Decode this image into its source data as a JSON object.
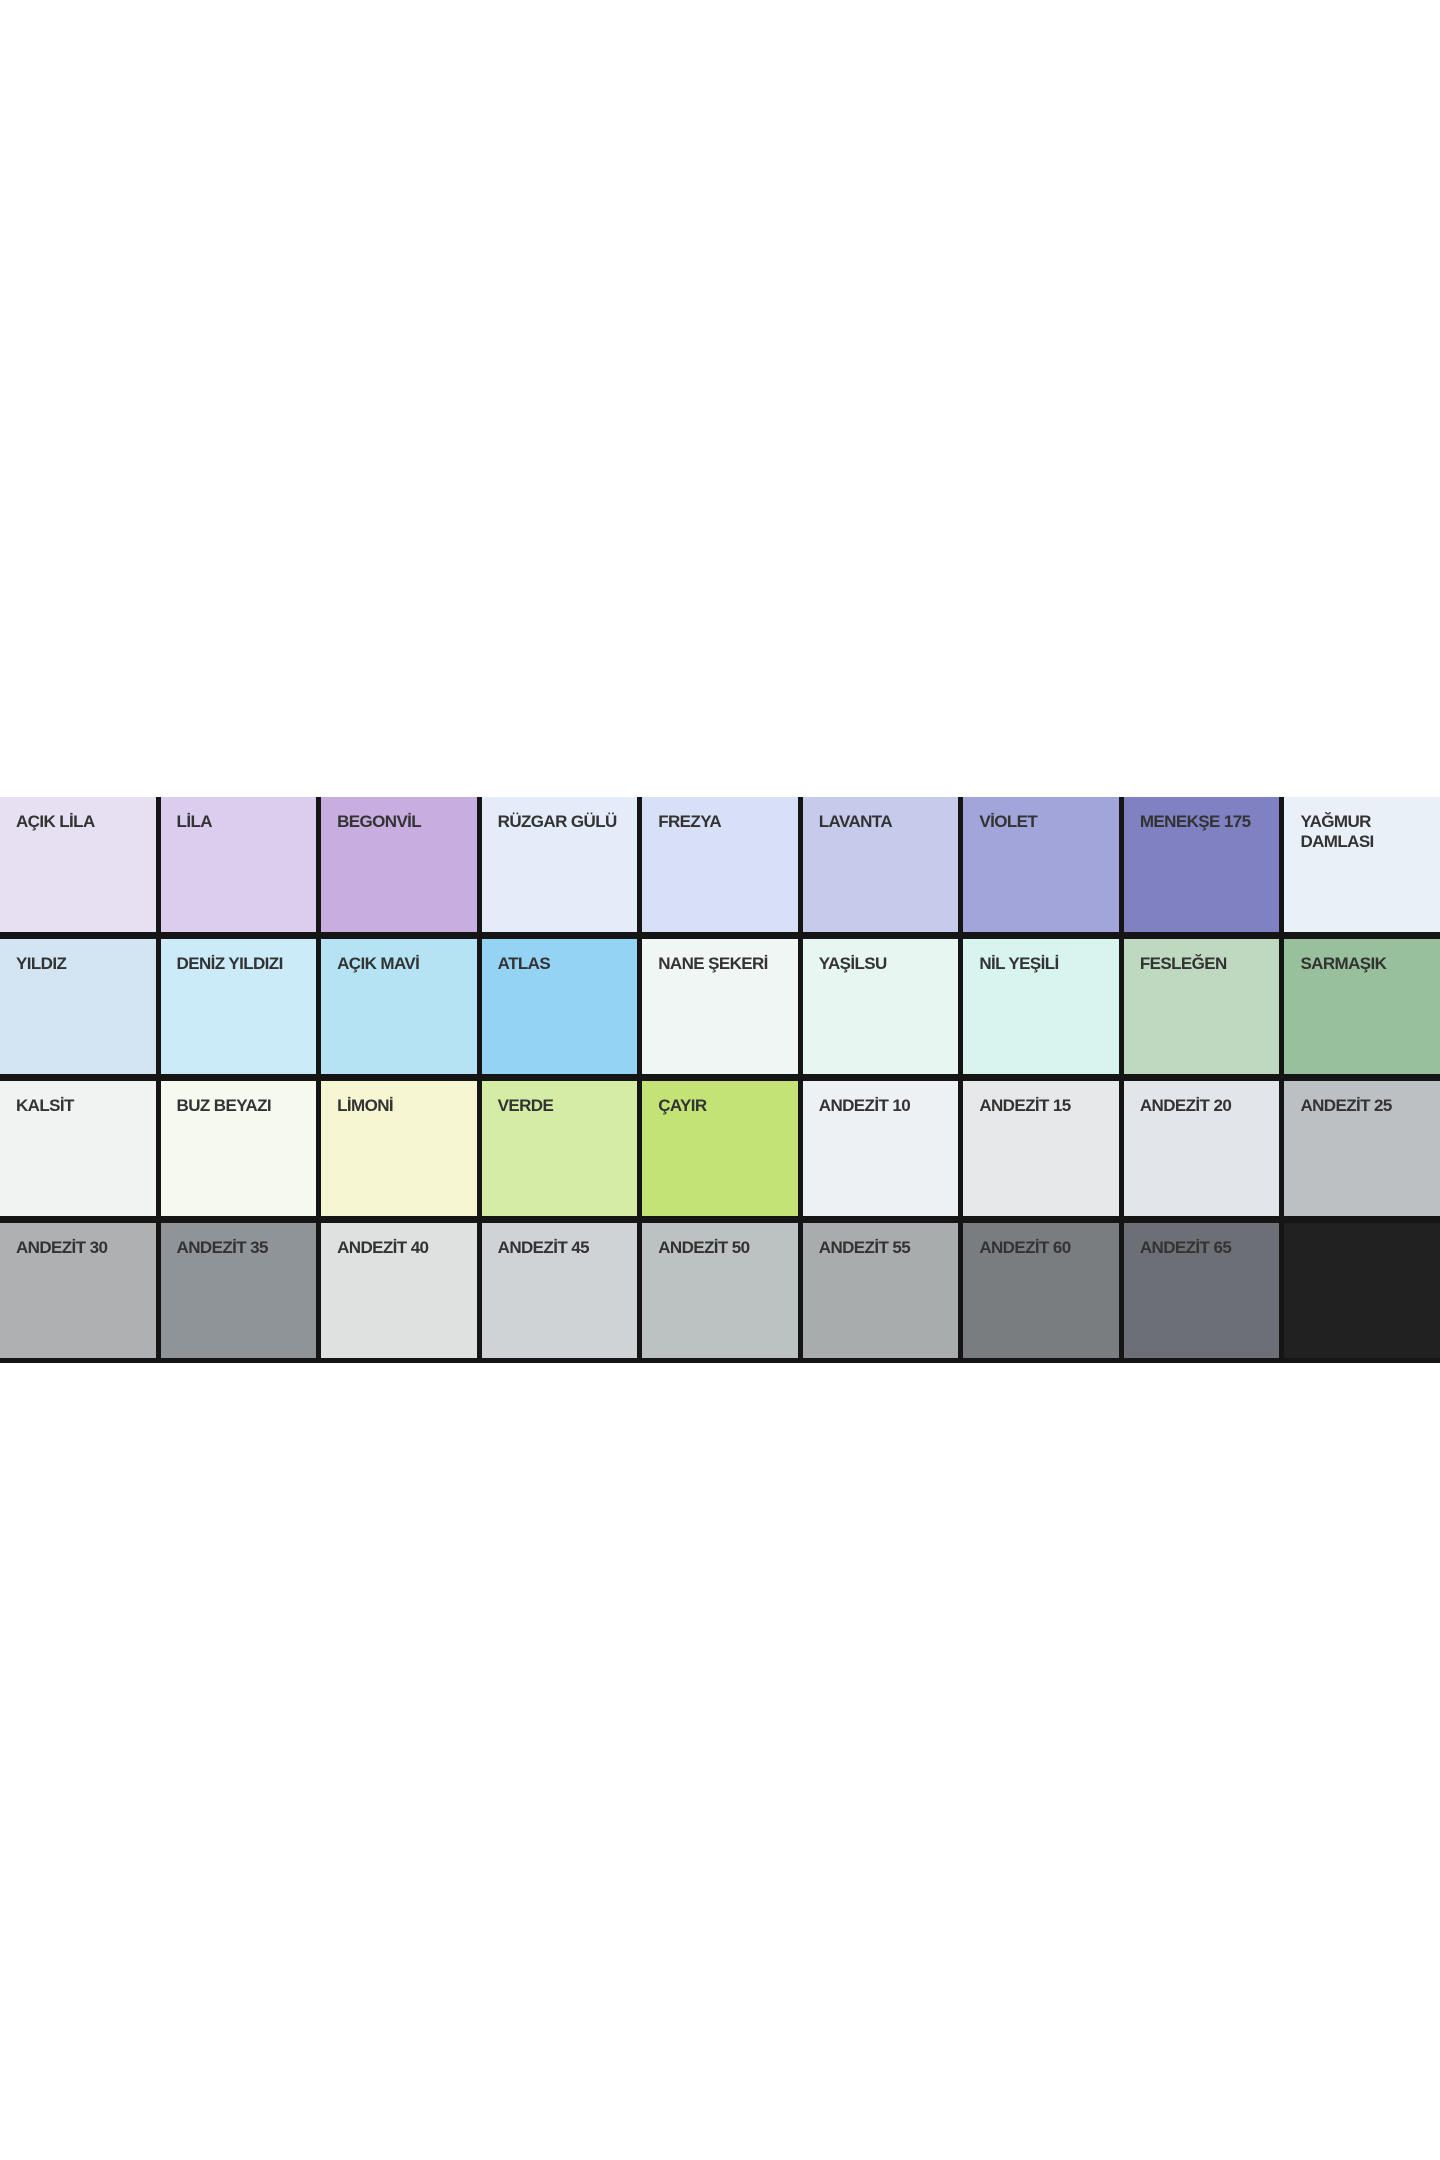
{
  "swatches": [
    {
      "name": "AÇIK LİLA",
      "color": "#e7dff2"
    },
    {
      "name": "LİLA",
      "color": "#dacdee"
    },
    {
      "name": "BEGONVİL",
      "color": "#c8ade0"
    },
    {
      "name": "RÜZGAR GÜLÜ",
      "color": "#e4ecf9"
    },
    {
      "name": "FREZYA",
      "color": "#d8e0f7"
    },
    {
      "name": "LAVANTA",
      "color": "#c6cbec"
    },
    {
      "name": "VİOLET",
      "color": "#a2a5da"
    },
    {
      "name": "MENEKŞE 175",
      "color": "#7f81c2"
    },
    {
      "name": "YAĞMUR\nDAMLASI",
      "color": "#e9f0f8"
    },
    {
      "name": "YILDIZ",
      "color": "#d3e5f3"
    },
    {
      "name": "DENİZ YILDIZI",
      "color": "#cbebf8"
    },
    {
      "name": "AÇIK MAVİ",
      "color": "#b5e3f4"
    },
    {
      "name": "ATLAS",
      "color": "#95d3f5"
    },
    {
      "name": "NANE ŞEKERİ",
      "color": "#eff6f4"
    },
    {
      "name": "YAŞİLSU",
      "color": "#e8f6f1"
    },
    {
      "name": "NİL YEŞİLİ",
      "color": "#d8f4ee"
    },
    {
      "name": "FESLEĞEN",
      "color": "#bfd9c1"
    },
    {
      "name": "SARMAŞIK",
      "color": "#99c09c"
    },
    {
      "name": "KALSİT",
      "color": "#f1f2f2"
    },
    {
      "name": "BUZ BEYAZI",
      "color": "#f5f9ee"
    },
    {
      "name": "LİMONİ",
      "color": "#f6f6d2"
    },
    {
      "name": "VERDE",
      "color": "#d5eca4"
    },
    {
      "name": "ÇAYIR",
      "color": "#c3e376"
    },
    {
      "name": "ANDEZİT 10",
      "color": "#eef1f3"
    },
    {
      "name": "ANDEZİT 15",
      "color": "#e7e8ea"
    },
    {
      "name": "ANDEZİT 20",
      "color": "#e2e6ea"
    },
    {
      "name": "ANDEZİT 25",
      "color": "#bcc0c3"
    },
    {
      "name": "ANDEZİT 30",
      "color": "#aeb0b2"
    },
    {
      "name": "ANDEZİT 35",
      "color": "#8f9498"
    },
    {
      "name": "ANDEZİT 40",
      "color": "#dfe0e0"
    },
    {
      "name": "ANDEZİT 45",
      "color": "#cfd3d6"
    },
    {
      "name": "ANDEZİT 50",
      "color": "#bcc1c2"
    },
    {
      "name": "ANDEZİT 55",
      "color": "#a9acad"
    },
    {
      "name": "ANDEZİT 60",
      "color": "#7a7d7f"
    },
    {
      "name": "ANDEZİT 65",
      "color": "#6d6f76"
    },
    {
      "name": "",
      "color": "#212121"
    }
  ]
}
